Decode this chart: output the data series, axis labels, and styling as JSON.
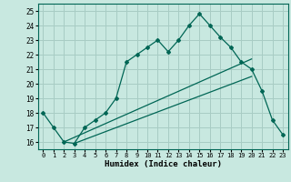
{
  "title": "",
  "xlabel": "Humidex (Indice chaleur)",
  "ylabel": "",
  "bg_color": "#c8e8e0",
  "grid_color": "#a8ccc4",
  "line_color": "#006655",
  "xlim": [
    -0.5,
    23.5
  ],
  "ylim": [
    15.5,
    25.5
  ],
  "xticks": [
    0,
    1,
    2,
    3,
    4,
    5,
    6,
    7,
    8,
    9,
    10,
    11,
    12,
    13,
    14,
    15,
    16,
    17,
    18,
    19,
    20,
    21,
    22,
    23
  ],
  "yticks": [
    16,
    17,
    18,
    19,
    20,
    21,
    22,
    23,
    24,
    25
  ],
  "main_line": {
    "x": [
      0,
      1,
      2,
      3,
      4,
      5,
      6,
      7,
      8,
      9,
      10,
      11,
      12,
      13,
      14,
      15,
      16,
      17,
      18,
      19,
      20,
      21,
      22,
      23
    ],
    "y": [
      18,
      17,
      16,
      15.9,
      17,
      17.5,
      18,
      19,
      21.5,
      22,
      22.5,
      23,
      22.2,
      23,
      24,
      24.8,
      24,
      23.2,
      22.5,
      21.5,
      21.0,
      19.5,
      17.5,
      16.5
    ]
  },
  "ref_line1": {
    "x": [
      2,
      20
    ],
    "y": [
      16,
      21.7
    ]
  },
  "ref_line2": {
    "x": [
      3,
      20
    ],
    "y": [
      15.9,
      20.5
    ]
  }
}
